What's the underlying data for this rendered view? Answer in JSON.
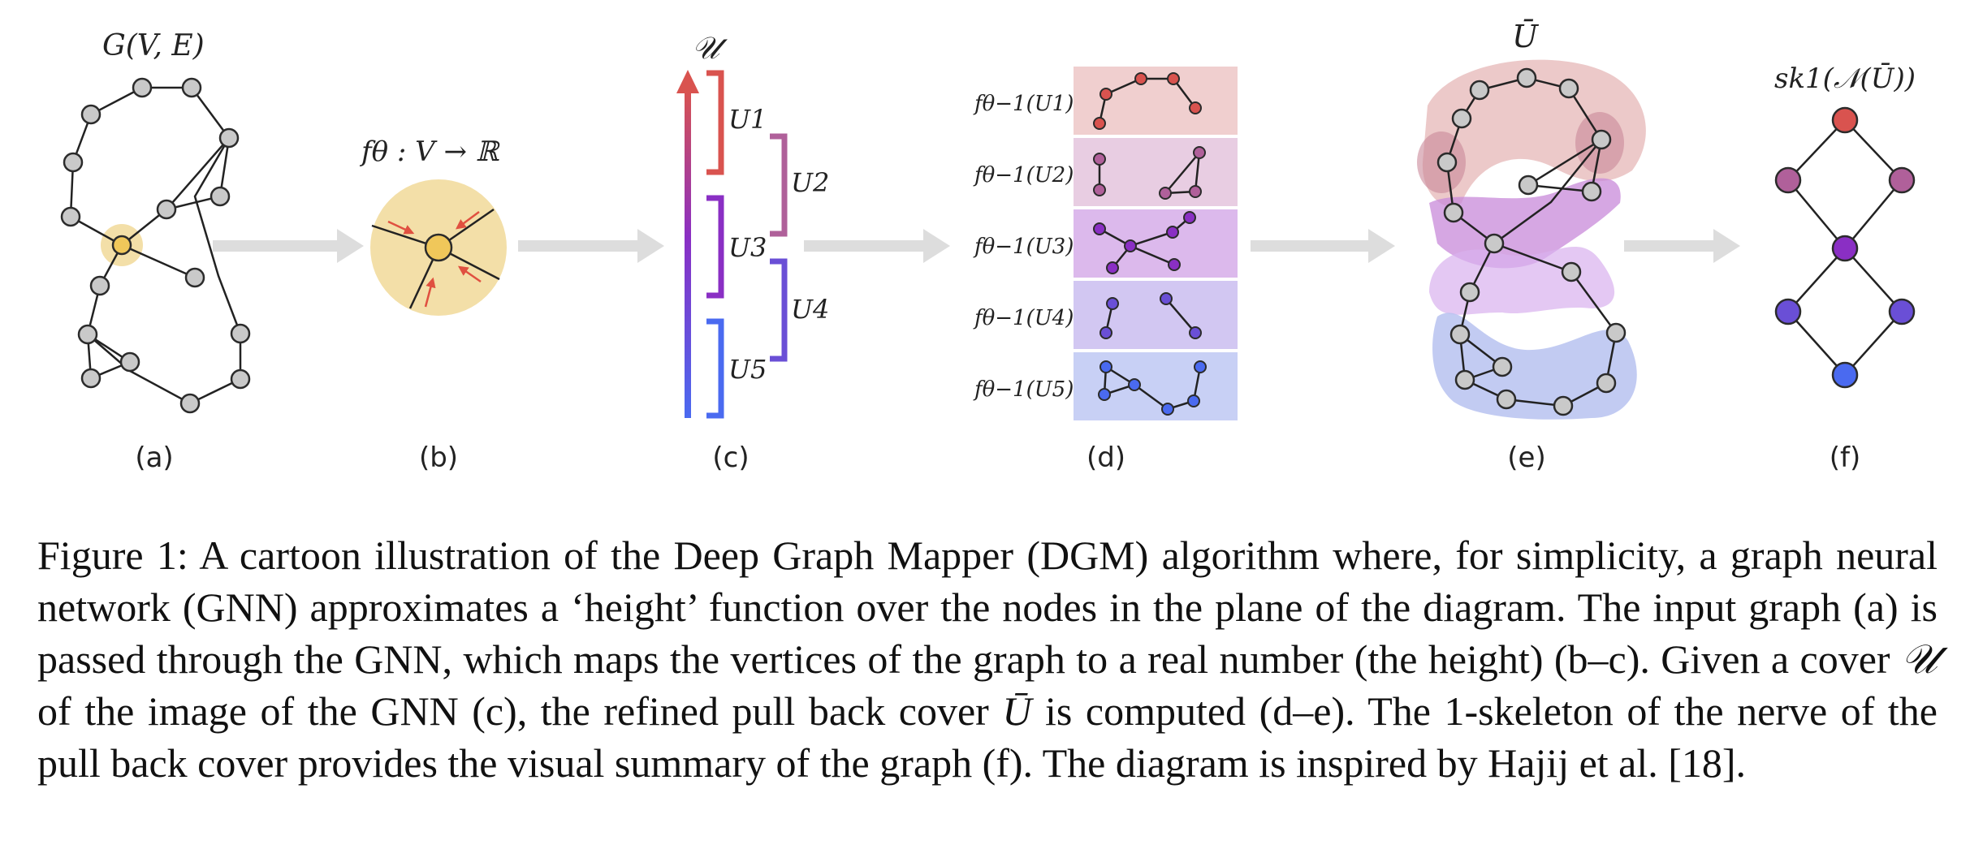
{
  "panels": {
    "a": {
      "label": "(a)",
      "title": "G(V, E)"
    },
    "b": {
      "label": "(b)",
      "title": "fθ : V → ℝ"
    },
    "c": {
      "label": "(c)",
      "title": "𝒰",
      "intervals": [
        "U1",
        "U2",
        "U3",
        "U4",
        "U5"
      ]
    },
    "d": {
      "label": "(d)",
      "rows": [
        "fθ−1(U1)",
        "fθ−1(U2)",
        "fθ−1(U3)",
        "fθ−1(U4)",
        "fθ−1(U5)"
      ]
    },
    "e": {
      "label": "(e)",
      "title": "Ū"
    },
    "f": {
      "label": "(f)",
      "title": "sk1(𝒩(Ū))"
    }
  },
  "colors": {
    "u1": "#d9534f",
    "u2": "#b0609a",
    "u3": "#8a2fc4",
    "u4": "#6a4fd6",
    "u5": "#4a6af0",
    "highlight": "#f3dfa8",
    "node": "#c9c9c9",
    "arrow": "#dddddd"
  },
  "caption": {
    "p1": "Figure 1: A cartoon illustration of the Deep Graph Mapper (DGM) algorithm where, for simplicity, a graph neural network (GNN) approximates a ‘height’ function over the nodes in the plane of the diagram. The input graph (a) is passed through the GNN, which maps the vertices of the graph to a real number (the height) (b–c). Given a cover ",
    "sym1": "𝒰",
    "p2": " of the image of the GNN (c), the refined pull back cover ",
    "sym2": "Ū",
    "p3": " is computed (d–e). The 1-skeleton of the nerve of the pull back cover provides the visual summary of the graph (f). The diagram is inspired by Hajij et al. [18]."
  }
}
